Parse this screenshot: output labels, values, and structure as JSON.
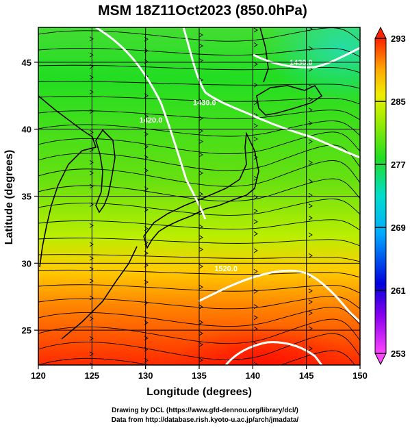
{
  "chart_data": {
    "type": "heatmap",
    "title": "MSM 18Z11Oct2023 (850.0hPa)",
    "xlabel": "Longitude (degrees)",
    "ylabel": "Latitude  (degrees)",
    "xlim": [
      120,
      150
    ],
    "ylim": [
      22.4,
      47.6
    ],
    "x_ticks": [
      120,
      125,
      130,
      135,
      140,
      145,
      150
    ],
    "y_ticks": [
      25,
      30,
      35,
      40,
      45
    ],
    "grid": true,
    "color_range": [
      253,
      293
    ],
    "colorbar_ticks": [
      253,
      261,
      269,
      277,
      285,
      293
    ],
    "colorscale": [
      "#ff44ff",
      "#0000dd",
      "#00aaff",
      "#00ddcc",
      "#22dd22",
      "#aaee00",
      "#eeee00",
      "#ffaa00",
      "#ff2200"
    ],
    "field_samples": {
      "description_lat_rows": [
        47,
        44,
        41,
        38,
        35,
        32,
        29,
        26,
        23
      ],
      "lon_cols": [
        120,
        125,
        130,
        135,
        140,
        145,
        150
      ],
      "values": [
        [
          280,
          279,
          279,
          278,
          277,
          276,
          275
        ],
        [
          279,
          279,
          279,
          278,
          278,
          277,
          276
        ],
        [
          280,
          279,
          279,
          279,
          279,
          278,
          277
        ],
        [
          281,
          280,
          280,
          280,
          280,
          279,
          278
        ],
        [
          282,
          281,
          281,
          282,
          282,
          282,
          281
        ],
        [
          283,
          283,
          283,
          284,
          284,
          284,
          283
        ],
        [
          285,
          286,
          286,
          286,
          287,
          287,
          286
        ],
        [
          287,
          288,
          288,
          288,
          289,
          289,
          288
        ],
        [
          288,
          289,
          289,
          290,
          291,
          290,
          289
        ]
      ]
    },
    "contour_labels": [
      {
        "text": "1420.0",
        "lon": 130.5,
        "lat": 40.5
      },
      {
        "text": "1430.0",
        "lon": 135.5,
        "lat": 41.8
      },
      {
        "text": "1430.0",
        "lon": 144.5,
        "lat": 44.8
      },
      {
        "text": "1520.0",
        "lon": 137.5,
        "lat": 29.4
      }
    ]
  },
  "credits": {
    "line1": "Drawing by DCL (https://www.gfd-dennou.org/library/dcl/)",
    "line2": "Data from http://database.rish.kyoto-u.ac.jp/arch/jmadata/"
  }
}
